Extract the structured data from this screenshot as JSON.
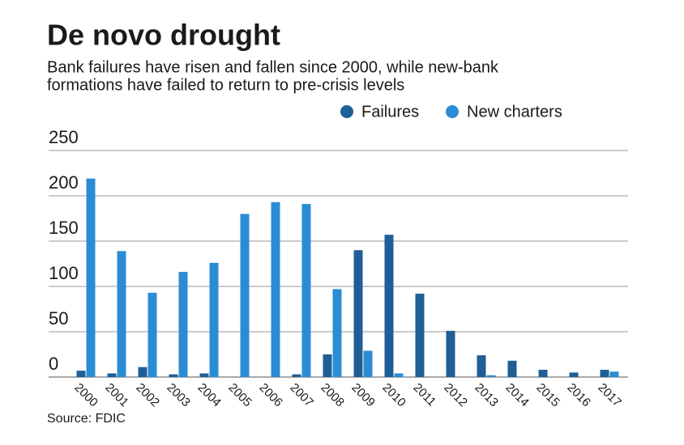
{
  "chart_data": {
    "type": "bar",
    "title": "De novo drought",
    "subtitle": [
      "Bank failures have risen and fallen since 2000, while new-bank",
      "formations have failed to return to pre-crisis levels"
    ],
    "source": "Source: FDIC",
    "categories": [
      "2000",
      "2001",
      "2002",
      "2003",
      "2004",
      "2005",
      "2006",
      "2007",
      "2008",
      "2009",
      "2010",
      "2011",
      "2012",
      "2013",
      "2014",
      "2015",
      "2016",
      "2017"
    ],
    "series": [
      {
        "name": "Failures",
        "color": "#1f5f96",
        "values": [
          7,
          4,
          11,
          3,
          4,
          0,
          0,
          3,
          25,
          140,
          157,
          92,
          51,
          24,
          18,
          8,
          5,
          8
        ]
      },
      {
        "name": "New charters",
        "color": "#2a8dd4",
        "values": [
          219,
          139,
          93,
          116,
          126,
          180,
          193,
          191,
          97,
          29,
          4,
          0,
          0,
          2,
          0,
          0,
          0,
          6
        ]
      }
    ],
    "ylim": [
      0,
      250
    ],
    "yticks": [
      0,
      50,
      100,
      150,
      200,
      250
    ],
    "grid": true
  }
}
